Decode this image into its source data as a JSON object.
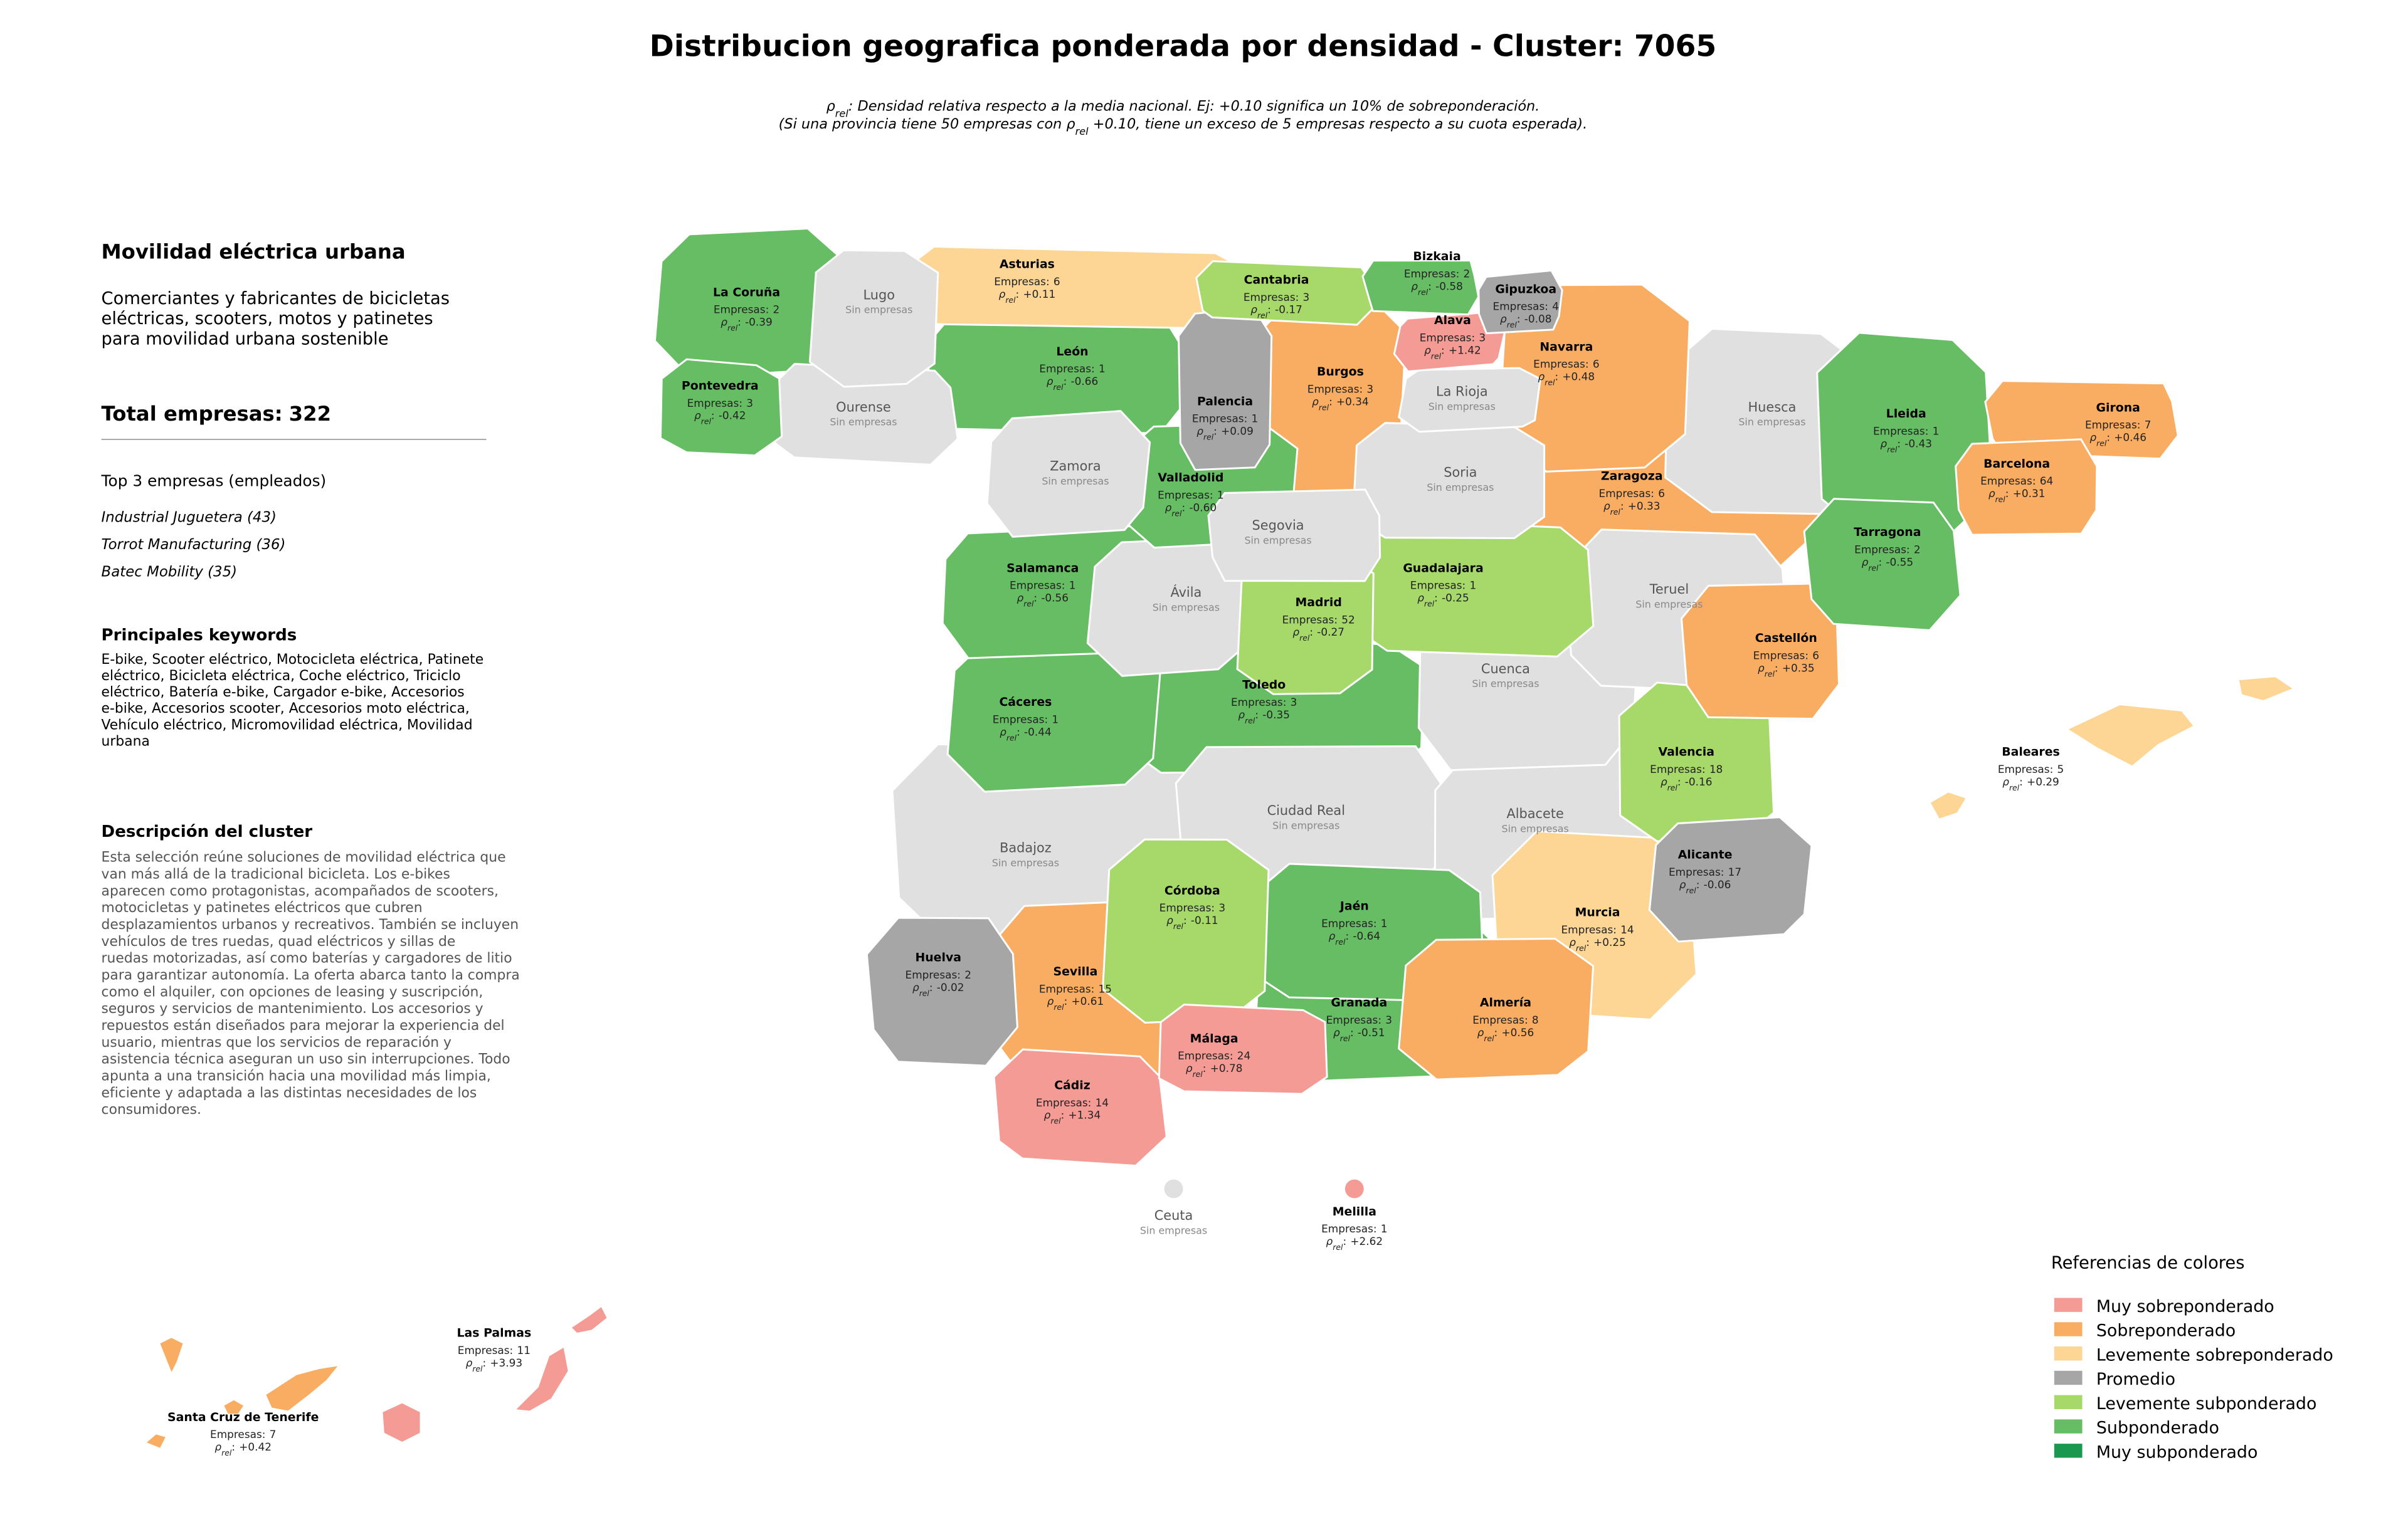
{
  "title": "Distribucion geografica ponderada por densidad - Cluster: 7065",
  "subtitle": [
    [
      {
        "text": "ρ"
      },
      {
        "text": "rel",
        "sub": true
      },
      {
        "text": ": Densidad relativa respecto a la media nacional. Ej: +0.10 significa un 10% de sobreponderación."
      }
    ],
    [
      {
        "text": "(Si una provincia tiene 50 empresas con "
      },
      {
        "text": "ρ"
      },
      {
        "text": "rel",
        "sub": true
      },
      {
        "text": " +0.10, tiene un exceso de 5 empresas respecto a su cuota esperada)."
      }
    ]
  ],
  "panel": {
    "title": "Movilidad eléctrica urbana",
    "summary": [
      "Comerciantes y fabricantes de bicicletas",
      "eléctricas, scooters, motos y patinetes",
      "para movilidad urbana sostenible"
    ],
    "total_label": "Total empresas:",
    "total": 322,
    "top_heading": "Top 3 empresas (empleados)",
    "top": [
      "Industrial Juguetera (43)",
      "Torrot Manufacturing (36)",
      "Batec Mobility (35)"
    ],
    "keywords_heading": "Principales keywords",
    "keywords": [
      "E-bike, Scooter eléctrico, Motocicleta eléctrica, Patinete",
      "eléctrico, Bicicleta eléctrica, Coche eléctrico, Triciclo",
      "eléctrico, Batería e-bike, Cargador e-bike, Accesorios",
      "e-bike, Accesorios scooter, Accesorios moto eléctrica,",
      "Vehículo eléctrico, Micromovilidad eléctrica, Movilidad",
      "urbana"
    ],
    "description_heading": "Descripción del cluster",
    "description": [
      "Esta selección reúne soluciones de movilidad eléctrica que",
      "van más allá de la tradicional bicicleta. Los e-bikes",
      "aparecen como protagonistas, acompañados de scooters,",
      "motocicletas y patinetes eléctricos que cubren",
      "desplazamientos urbanos y recreativos. También se incluyen",
      "vehículos de tres ruedas, quad eléctricos y sillas de",
      "ruedas motorizadas, así como baterías y cargadores de litio",
      "para garantizar autonomía. La oferta abarca tanto la compra",
      "como el alquiler, con opciones de leasing y suscripción,",
      "seguros y servicios de mantenimiento. Los accesorios y",
      "repuestos están diseñados para mejorar la experiencia del",
      "usuario, mientras que los servicios de reparación y",
      "asistencia técnica aseguran un uso sin interrupciones. Todo",
      "apunta a una transición hacia una movilidad más limpia,",
      "eficiente y adaptada a las distintas necesidades de los",
      "consumidores."
    ]
  },
  "labels": {
    "empresas": "Empresas:",
    "rho_symbol": "ρ",
    "rho_sub": "rel",
    "rho_sep": ":",
    "no_data": "Sin empresas"
  },
  "provinces": [
    {
      "name": "La Coruña",
      "empresas": 2,
      "rho": "-0.39",
      "color": "#66bd63"
    },
    {
      "name": "Lugo",
      "color": "#e0e0e0"
    },
    {
      "name": "Asturias",
      "empresas": 6,
      "rho": "+0.11",
      "color": "#fdd595"
    },
    {
      "name": "Cantabria",
      "empresas": 3,
      "rho": "-0.17",
      "color": "#a6d96a"
    },
    {
      "name": "Bizkaia",
      "empresas": 2,
      "rho": "-0.58",
      "color": "#66bd63"
    },
    {
      "name": "Gipuzkoa",
      "empresas": 4,
      "rho": "-0.08",
      "color": "#a6a6a6"
    },
    {
      "name": "Alava",
      "empresas": 3,
      "rho": "+1.42",
      "color": "#f59b95"
    },
    {
      "name": "Navarra",
      "empresas": 6,
      "rho": "+0.48",
      "color": "#f9ad62"
    },
    {
      "name": "Pontevedra",
      "empresas": 3,
      "rho": "-0.42",
      "color": "#66bd63"
    },
    {
      "name": "Ourense",
      "color": "#e0e0e0"
    },
    {
      "name": "León",
      "empresas": 1,
      "rho": "-0.66",
      "color": "#66bd63"
    },
    {
      "name": "Palencia",
      "empresas": 1,
      "rho": "+0.09",
      "color": "#a6a6a6"
    },
    {
      "name": "Burgos",
      "empresas": 3,
      "rho": "+0.34",
      "color": "#f9ad62"
    },
    {
      "name": "La Rioja",
      "color": "#e0e0e0"
    },
    {
      "name": "Huesca",
      "color": "#e0e0e0"
    },
    {
      "name": "Lleida",
      "empresas": 1,
      "rho": "-0.43",
      "color": "#66bd63"
    },
    {
      "name": "Girona",
      "empresas": 7,
      "rho": "+0.46",
      "color": "#f9ad62"
    },
    {
      "name": "Barcelona",
      "empresas": 64,
      "rho": "+0.31",
      "color": "#f9ad62"
    },
    {
      "name": "Zamora",
      "color": "#e0e0e0"
    },
    {
      "name": "Valladolid",
      "empresas": 1,
      "rho": "-0.60",
      "color": "#66bd63"
    },
    {
      "name": "Soria",
      "color": "#e0e0e0"
    },
    {
      "name": "Zaragoza",
      "empresas": 6,
      "rho": "+0.33",
      "color": "#f9ad62"
    },
    {
      "name": "Tarragona",
      "empresas": 2,
      "rho": "-0.55",
      "color": "#66bd63"
    },
    {
      "name": "Segovia",
      "color": "#e0e0e0"
    },
    {
      "name": "Salamanca",
      "empresas": 1,
      "rho": "-0.56",
      "color": "#66bd63"
    },
    {
      "name": "Ávila",
      "color": "#e0e0e0"
    },
    {
      "name": "Madrid",
      "empresas": 52,
      "rho": "-0.27",
      "color": "#a6d96a"
    },
    {
      "name": "Guadalajara",
      "empresas": 1,
      "rho": "-0.25",
      "color": "#a6d96a"
    },
    {
      "name": "Teruel",
      "color": "#e0e0e0"
    },
    {
      "name": "Castellón",
      "empresas": 6,
      "rho": "+0.35",
      "color": "#f9ad62"
    },
    {
      "name": "Cuenca",
      "color": "#e0e0e0"
    },
    {
      "name": "Cáceres",
      "empresas": 1,
      "rho": "-0.44",
      "color": "#66bd63"
    },
    {
      "name": "Toledo",
      "empresas": 3,
      "rho": "-0.35",
      "color": "#66bd63"
    },
    {
      "name": "Valencia",
      "empresas": 18,
      "rho": "-0.16",
      "color": "#a6d96a"
    },
    {
      "name": "Badajoz",
      "color": "#e0e0e0"
    },
    {
      "name": "Ciudad Real",
      "color": "#e0e0e0"
    },
    {
      "name": "Albacete",
      "color": "#e0e0e0"
    },
    {
      "name": "Alicante",
      "empresas": 17,
      "rho": "-0.06",
      "color": "#a6a6a6"
    },
    {
      "name": "Córdoba",
      "empresas": 3,
      "rho": "-0.11",
      "color": "#a6d96a"
    },
    {
      "name": "Jaén",
      "empresas": 1,
      "rho": "-0.64",
      "color": "#66bd63"
    },
    {
      "name": "Murcia",
      "empresas": 14,
      "rho": "+0.25",
      "color": "#fdd595"
    },
    {
      "name": "Huelva",
      "empresas": 2,
      "rho": "-0.02",
      "color": "#a6a6a6"
    },
    {
      "name": "Sevilla",
      "empresas": 15,
      "rho": "+0.61",
      "color": "#f9ad62"
    },
    {
      "name": "Granada",
      "empresas": 3,
      "rho": "-0.51",
      "color": "#66bd63"
    },
    {
      "name": "Almería",
      "empresas": 8,
      "rho": "+0.56",
      "color": "#f9ad62"
    },
    {
      "name": "Málaga",
      "empresas": 24,
      "rho": "+0.78",
      "color": "#f59b95"
    },
    {
      "name": "Cádiz",
      "empresas": 14,
      "rho": "+1.34",
      "color": "#f59b95"
    },
    {
      "name": "Baleares",
      "empresas": 5,
      "rho": "+0.29",
      "color": "#fdd595"
    },
    {
      "name": "Ceuta",
      "color": "#e0e0e0"
    },
    {
      "name": "Melilla",
      "empresas": 1,
      "rho": "+2.62",
      "color": "#f59b95"
    },
    {
      "name": "Las Palmas",
      "empresas": 11,
      "rho": "+3.93",
      "color": "#f59b95"
    },
    {
      "name": "Santa Cruz de Tenerife",
      "empresas": 7,
      "rho": "+0.42",
      "color": "#f9ad62"
    }
  ],
  "legend": {
    "title": "Referencias de colores",
    "items": [
      {
        "name": "Muy sobreponderado",
        "color": "#f59b95"
      },
      {
        "name": "Sobreponderado",
        "color": "#f9ad62"
      },
      {
        "name": "Levemente sobreponderado",
        "color": "#fdd595"
      },
      {
        "name": "Promedio",
        "color": "#a6a6a6"
      },
      {
        "name": "Levemente subponderado",
        "color": "#a6d96a"
      },
      {
        "name": "Subponderado",
        "color": "#66bd63"
      },
      {
        "name": "Muy subponderado",
        "color": "#1a9850"
      }
    ]
  }
}
